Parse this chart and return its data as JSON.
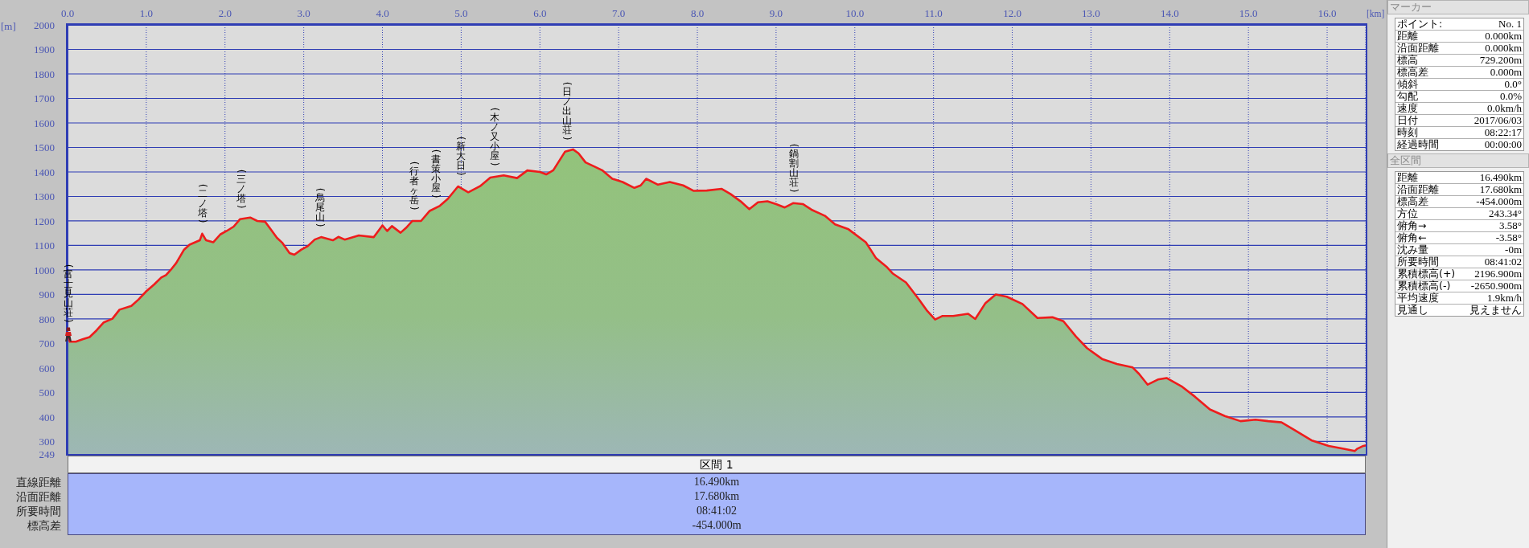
{
  "chart_data": [
    {
      "type": "area",
      "xlabel": "[km]",
      "ylabel": "[m]",
      "color": "#ee1c1c",
      "x": [
        0,
        0.03,
        0.105,
        0.19,
        0.28,
        0.37,
        0.46,
        0.57,
        0.66,
        0.81,
        0.9,
        1.0,
        1.1,
        1.19,
        1.25,
        1.31,
        1.38,
        1.48,
        1.55,
        1.68,
        1.71,
        1.76,
        1.85,
        1.94,
        2.02,
        2.11,
        2.19,
        2.32,
        2.41,
        2.51,
        2.58,
        2.66,
        2.73,
        2.82,
        2.88,
        2.97,
        3.05,
        3.14,
        3.22,
        3.37,
        3.44,
        3.52,
        3.7,
        3.89,
        4.0,
        4.06,
        4.12,
        4.23,
        4.3,
        4.38,
        4.49,
        4.6,
        4.73,
        4.83,
        4.96,
        5.09,
        5.24,
        5.37,
        5.54,
        5.71,
        5.84,
        6.0,
        6.08,
        6.17,
        6.32,
        6.42,
        6.49,
        6.58,
        6.7,
        6.79,
        6.92,
        7.05,
        7.2,
        7.28,
        7.35,
        7.5,
        7.65,
        7.82,
        7.95,
        8.12,
        8.31,
        8.42,
        8.55,
        8.66,
        8.77,
        8.89,
        9.0,
        9.11,
        9.22,
        9.34,
        9.45,
        9.62,
        9.75,
        9.92,
        10.14,
        10.27,
        10.4,
        10.48,
        10.65,
        10.81,
        10.92,
        11.02,
        11.11,
        11.25,
        11.44,
        11.53,
        11.66,
        11.79,
        11.93,
        12.13,
        12.32,
        12.51,
        12.65,
        12.81,
        12.95,
        13.14,
        13.33,
        13.53,
        13.61,
        13.72,
        13.85,
        13.96,
        14.16,
        14.32,
        14.51,
        14.7,
        14.9,
        15.09,
        15.25,
        15.42,
        15.58,
        15.8,
        16.02,
        16.21,
        16.35,
        16.38,
        16.46,
        16.49
      ],
      "values": [
        740,
        707,
        707,
        717,
        726,
        754,
        786,
        801,
        838,
        853,
        879,
        913,
        941,
        969,
        979,
        1000,
        1028,
        1083,
        1103,
        1121,
        1148,
        1121,
        1113,
        1145,
        1159,
        1177,
        1207,
        1214,
        1200,
        1197,
        1166,
        1131,
        1110,
        1069,
        1062,
        1083,
        1097,
        1124,
        1134,
        1121,
        1135,
        1124,
        1141,
        1134,
        1182,
        1159,
        1179,
        1152,
        1172,
        1200,
        1200,
        1241,
        1262,
        1290,
        1341,
        1317,
        1342,
        1377,
        1386,
        1375,
        1406,
        1400,
        1390,
        1407,
        1483,
        1492,
        1476,
        1439,
        1421,
        1407,
        1372,
        1359,
        1335,
        1345,
        1372,
        1348,
        1359,
        1345,
        1323,
        1324,
        1331,
        1310,
        1280,
        1248,
        1276,
        1280,
        1269,
        1255,
        1273,
        1269,
        1246,
        1221,
        1186,
        1166,
        1113,
        1048,
        1014,
        986,
        949,
        882,
        833,
        798,
        812,
        812,
        821,
        800,
        865,
        900,
        891,
        861,
        804,
        807,
        791,
        728,
        681,
        637,
        616,
        602,
        576,
        532,
        553,
        559,
        523,
        483,
        431,
        404,
        383,
        389,
        383,
        378,
        348,
        305,
        282,
        270,
        261,
        270,
        282,
        284
      ],
      "xlim": [
        0,
        16.49
      ],
      "ylim": [
        249,
        2000
      ],
      "xticks": [
        {
          "value": 0,
          "label": "0.0"
        },
        {
          "value": 1,
          "label": "1.0"
        },
        {
          "value": 2,
          "label": "2.0"
        },
        {
          "value": 3,
          "label": "3.0"
        },
        {
          "value": 4,
          "label": "4.0"
        },
        {
          "value": 5,
          "label": "5.0"
        },
        {
          "value": 6,
          "label": "6.0"
        },
        {
          "value": 7,
          "label": "7.0"
        },
        {
          "value": 8,
          "label": "8.0"
        },
        {
          "value": 9,
          "label": "9.0"
        },
        {
          "value": 10,
          "label": "10.0"
        },
        {
          "value": 11,
          "label": "11.0"
        },
        {
          "value": 12,
          "label": "12.0"
        },
        {
          "value": 13,
          "label": "13.0"
        },
        {
          "value": 14,
          "label": "14.0"
        },
        {
          "value": 15,
          "label": "15.0"
        },
        {
          "value": 16,
          "label": "16.0"
        }
      ],
      "yticks": [
        249,
        300,
        400,
        500,
        600,
        700,
        800,
        900,
        1000,
        1100,
        1200,
        1300,
        1400,
        1500,
        1600,
        1700,
        1800,
        1900,
        2000
      ],
      "grid": true,
      "annotations": [
        {
          "text": "(富士見山荘)",
          "x": 0,
          "y": 740
        },
        {
          "text": "(二ノ塔)",
          "x": 1.71,
          "y": 1148
        },
        {
          "text": "(三ノ塔)",
          "x": 2.2,
          "y": 1207
        },
        {
          "text": "(烏尾山)",
          "x": 3.2,
          "y": 1132
        },
        {
          "text": "(行者ヶ岳)",
          "x": 4.39,
          "y": 1200
        },
        {
          "text": "(書策小屋)",
          "x": 4.67,
          "y": 1250
        },
        {
          "text": "(新大日)",
          "x": 4.99,
          "y": 1340
        },
        {
          "text": "(木ノ又小屋)",
          "x": 5.42,
          "y": 1380
        },
        {
          "text": "(日ノ出山荘)",
          "x": 6.33,
          "y": 1485
        },
        {
          "text": "(鍋割山荘)",
          "x": 9.22,
          "y": 1273
        }
      ]
    },
    {
      "type": "other",
      "title": "マーカー",
      "annotations": [
        "ポイント:",
        "No. 1",
        "距離",
        "0.000km",
        "沿面距離",
        "0.000km",
        "標高",
        "729.200m",
        "標高差",
        "0.000m",
        "傾斜",
        "0.0°",
        "勾配",
        "0.0%",
        "速度",
        "0.0km/h",
        "日付",
        "2017/06/03",
        "時刻",
        "08:22:17",
        "経過時間",
        "00:00:00"
      ]
    },
    {
      "type": "other",
      "title": "全区間",
      "annotations": [
        "距離",
        "16.490km",
        "沿面距離",
        "17.680km",
        "標高差",
        "-454.000m",
        "方位",
        "243.34°",
        "俯角→",
        "3.58°",
        "俯角←",
        "-3.58°",
        "沈み量",
        "-0m",
        "所要時間",
        "08:41:02",
        "累積標高(+)",
        "2196.900m",
        "累積標高(-)",
        "-2650.900m",
        "平均速度",
        "1.9km/h",
        "見通し",
        "見えません"
      ]
    },
    {
      "type": "other",
      "title": "区間 1",
      "annotations": [
        "直線距離",
        "16.490km",
        "沿面距離",
        "17.680km",
        "所要時間",
        "08:41:02",
        "標高差",
        "-454.000m"
      ]
    }
  ]
}
